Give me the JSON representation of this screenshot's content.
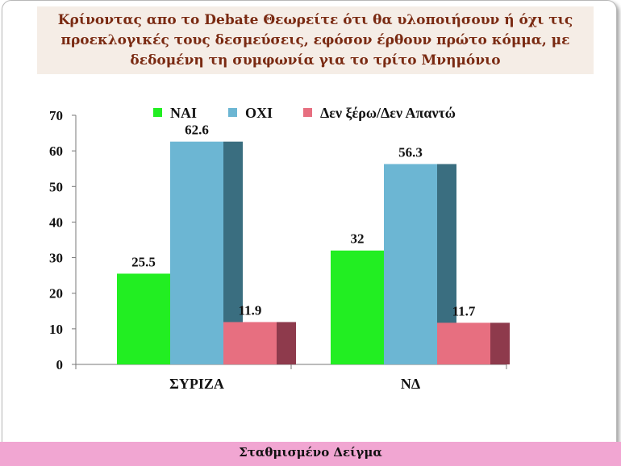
{
  "title": "Κρίνοντας απο το Debate Θεωρείτε ότι θα υλοποιήσουν ή όχι τις προεκλογικές τους δεσμεύσεις, εφόσον έρθουν πρώτο κόμμα, με δεδομένη τη συμφωνία για το τρίτο   Μνημόνιο",
  "footer": "Σταθμισμένο Δείγμα",
  "chart_data": {
    "type": "bar",
    "categories": [
      "ΣΥΡΙΖΑ",
      "ΝΔ"
    ],
    "series": [
      {
        "name": "ΝΑΙ",
        "values": [
          25.5,
          32
        ],
        "labels": [
          "25.5",
          "32"
        ],
        "color": "#22ee22",
        "shade": "#16a816"
      },
      {
        "name": "ΟΧΙ",
        "values": [
          62.6,
          56.3
        ],
        "labels": [
          "62.6",
          "56.3"
        ],
        "color": "#6cb6d3",
        "shade": "#3a6e80"
      },
      {
        "name": "Δεν ξέρω/Δεν Απαντώ",
        "values": [
          11.9,
          11.7
        ],
        "labels": [
          "11.9",
          "11.7"
        ],
        "color": "#e76f80",
        "shade": "#8e3a4c"
      }
    ],
    "yticks": [
      "0",
      "10",
      "20",
      "30",
      "40",
      "50",
      "60",
      "70"
    ],
    "ylim": [
      0,
      70
    ],
    "legend": "top",
    "grid": false,
    "style": "3d"
  }
}
